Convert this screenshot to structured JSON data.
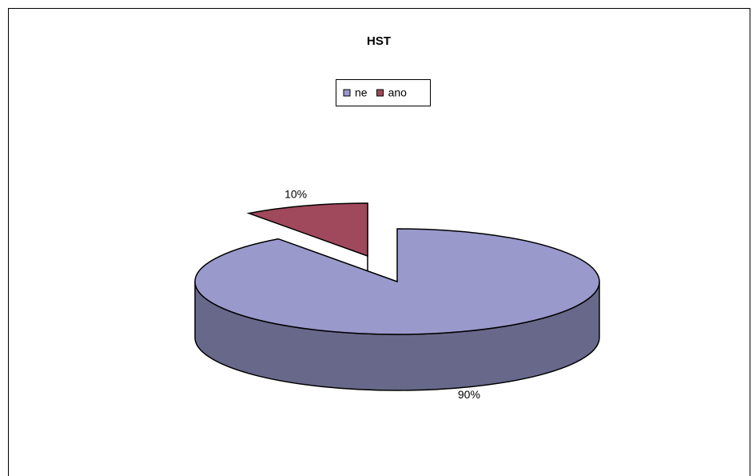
{
  "chart_data": {
    "type": "pie",
    "title": "HST",
    "categories": [
      "ne",
      "ano"
    ],
    "values": [
      90,
      10
    ],
    "value_labels": [
      "90%",
      "10%"
    ],
    "colors": [
      "#9999cc",
      "#a0485c"
    ],
    "legend": "top"
  }
}
